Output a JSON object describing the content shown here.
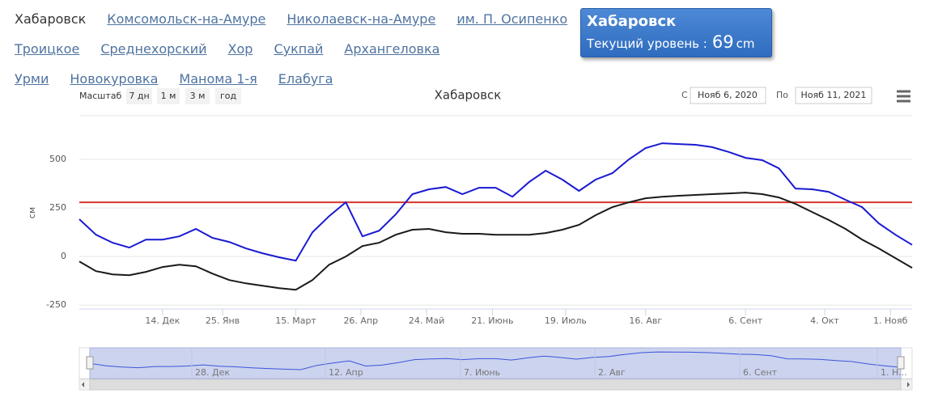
{
  "nav": {
    "current": "Хабаровск",
    "rows": [
      [
        "Комсомольск-на-Амуре",
        "Николаевск-на-Амуре",
        "им. П. Осипенко"
      ],
      [
        "Троицкое",
        "Среднехорский",
        "Хор",
        "Сукпай",
        "Архангеловка"
      ],
      [
        "Урми",
        "Новокуровка",
        "Манома 1-я",
        "Елабуга"
      ]
    ]
  },
  "info": {
    "station": "Хабаровск",
    "label": "Текущий уровень :",
    "value": "69",
    "unit": "cm"
  },
  "range_selector": {
    "label": "Масштаб",
    "buttons": [
      "7 дн",
      "1 м",
      "3 м",
      "год"
    ],
    "from_label": "С",
    "from": "Нояб 6, 2020",
    "to_label": "По",
    "to": "Нояб 11, 2021"
  },
  "navigator": {
    "labels": [
      "28. Дек",
      "12. Апр",
      "7. Июнь",
      "2. Авг",
      "6. Сент",
      "1. Н..."
    ]
  },
  "chart_data": {
    "type": "line",
    "title": "Хабаровск",
    "y_label": "см",
    "xlim": [
      0,
      50
    ],
    "ylim": [
      -270,
      725
    ],
    "yticks": [
      -250,
      0,
      250,
      500
    ],
    "grid": true,
    "xticks": [
      {
        "value": 5,
        "label": "14. Дек"
      },
      {
        "value": 8.6,
        "label": "25. Янв"
      },
      {
        "value": 13,
        "label": "15. Март"
      },
      {
        "value": 16.9,
        "label": "26. Апр"
      },
      {
        "value": 20.85,
        "label": "24. Май"
      },
      {
        "value": 24.8,
        "label": "21. Июнь"
      },
      {
        "value": 29.2,
        "label": "19. Июль"
      },
      {
        "value": 34,
        "label": "16. Авг"
      },
      {
        "value": 40,
        "label": "6. Сент"
      },
      {
        "value": 44.75,
        "label": "4. Окт"
      },
      {
        "value": 48.7,
        "label": "1. Нояб"
      }
    ],
    "plot_line": {
      "value": 279,
      "color": "#d9342b"
    },
    "series": [
      {
        "color": "#1a1ad1",
        "values": [
          192,
          112,
          71,
          46,
          87,
          87,
          104,
          142,
          96,
          75,
          42,
          17,
          -4,
          -21,
          125,
          208,
          279,
          104,
          133,
          217,
          321,
          346,
          358,
          321,
          354,
          354,
          308,
          383,
          442,
          396,
          338,
          396,
          429,
          500,
          558,
          583,
          579,
          575,
          563,
          538,
          508,
          496,
          454,
          350,
          346,
          333,
          292,
          254,
          171,
          112,
          60
        ]
      },
      {
        "color": "#1a1a1a",
        "values": [
          -25,
          -75,
          -92,
          -96,
          -79,
          -54,
          -42,
          -50,
          -88,
          -121,
          -138,
          -150,
          -163,
          -171,
          -121,
          -42,
          0,
          54,
          71,
          112,
          138,
          142,
          125,
          117,
          117,
          112,
          112,
          112,
          121,
          138,
          163,
          213,
          254,
          279,
          300,
          308,
          313,
          317,
          321,
          325,
          329,
          321,
          304,
          271,
          229,
          188,
          142,
          87,
          42,
          -8,
          -58
        ]
      }
    ]
  }
}
